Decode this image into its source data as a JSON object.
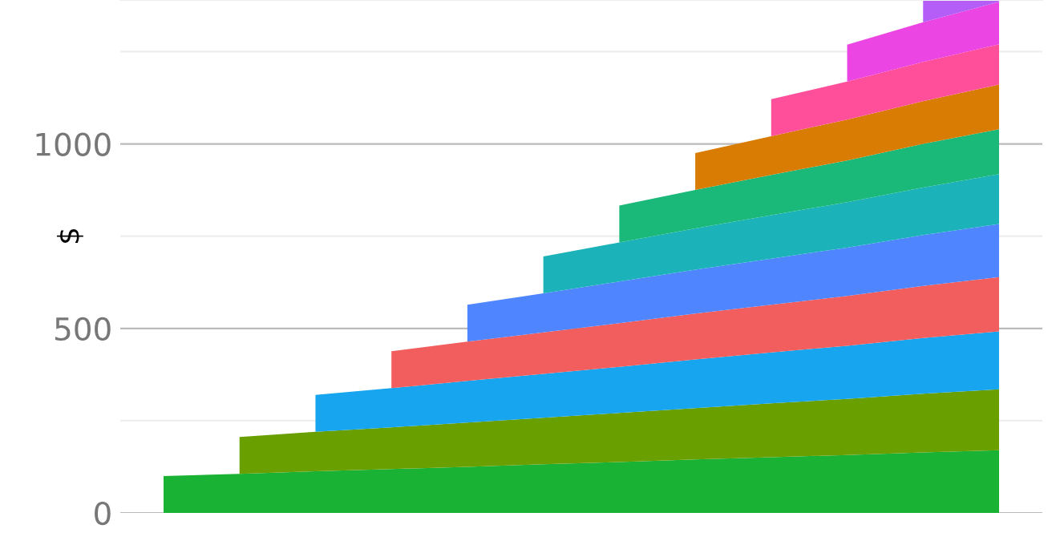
{
  "chart_data": {
    "type": "area",
    "stacked": true,
    "ylabel": "$",
    "categories": [
      null,
      null,
      null,
      null,
      null,
      null,
      null,
      null,
      null,
      null,
      null,
      null
    ],
    "series": [
      {
        "color": "#1ab234",
        "values": [
          100,
          106,
          113,
          119,
          125,
          132,
          138,
          145,
          151,
          157,
          164,
          170
        ]
      },
      {
        "color": "#6a9f00",
        "values": [
          null,
          100,
          107,
          113,
          120,
          126,
          133,
          139,
          146,
          152,
          159,
          165
        ]
      },
      {
        "color": "#16a5ee",
        "values": [
          null,
          null,
          100,
          106,
          113,
          119,
          125,
          132,
          138,
          144,
          151,
          157
        ]
      },
      {
        "color": "#f25d5d",
        "values": [
          null,
          null,
          null,
          100,
          106,
          112,
          118,
          124,
          129,
          135,
          141,
          147
        ]
      },
      {
        "color": "#4f86ff",
        "values": [
          null,
          null,
          null,
          null,
          100,
          106,
          113,
          119,
          125,
          131,
          138,
          144
        ]
      },
      {
        "color": "#1bb3b9",
        "values": [
          null,
          null,
          null,
          null,
          null,
          100,
          106,
          112,
          118,
          123,
          129,
          135
        ]
      },
      {
        "color": "#1ab97a",
        "values": [
          null,
          null,
          null,
          null,
          null,
          null,
          100,
          104,
          109,
          113,
          118,
          122
        ]
      },
      {
        "color": "#d87c04",
        "values": [
          null,
          null,
          null,
          null,
          null,
          null,
          null,
          100,
          105,
          111,
          116,
          121
        ]
      },
      {
        "color": "#ff4f9b",
        "values": [
          null,
          null,
          null,
          null,
          null,
          null,
          null,
          null,
          100,
          103,
          106,
          109
        ]
      },
      {
        "color": "#eb45e3",
        "values": [
          null,
          null,
          null,
          null,
          null,
          null,
          null,
          null,
          null,
          100,
          108,
          115
        ]
      },
      {
        "color": "#b45ef7",
        "values": [
          null,
          null,
          null,
          null,
          null,
          null,
          null,
          null,
          null,
          null,
          60,
          5
        ]
      }
    ],
    "ylim": [
      0,
      1390
    ],
    "yticks": [
      0,
      {
        "value": 250,
        "label": null
      },
      500,
      {
        "value": 750,
        "label": null
      },
      1000,
      {
        "value": 1250,
        "label": null
      }
    ],
    "grid": "y",
    "tick_labels": "y"
  }
}
